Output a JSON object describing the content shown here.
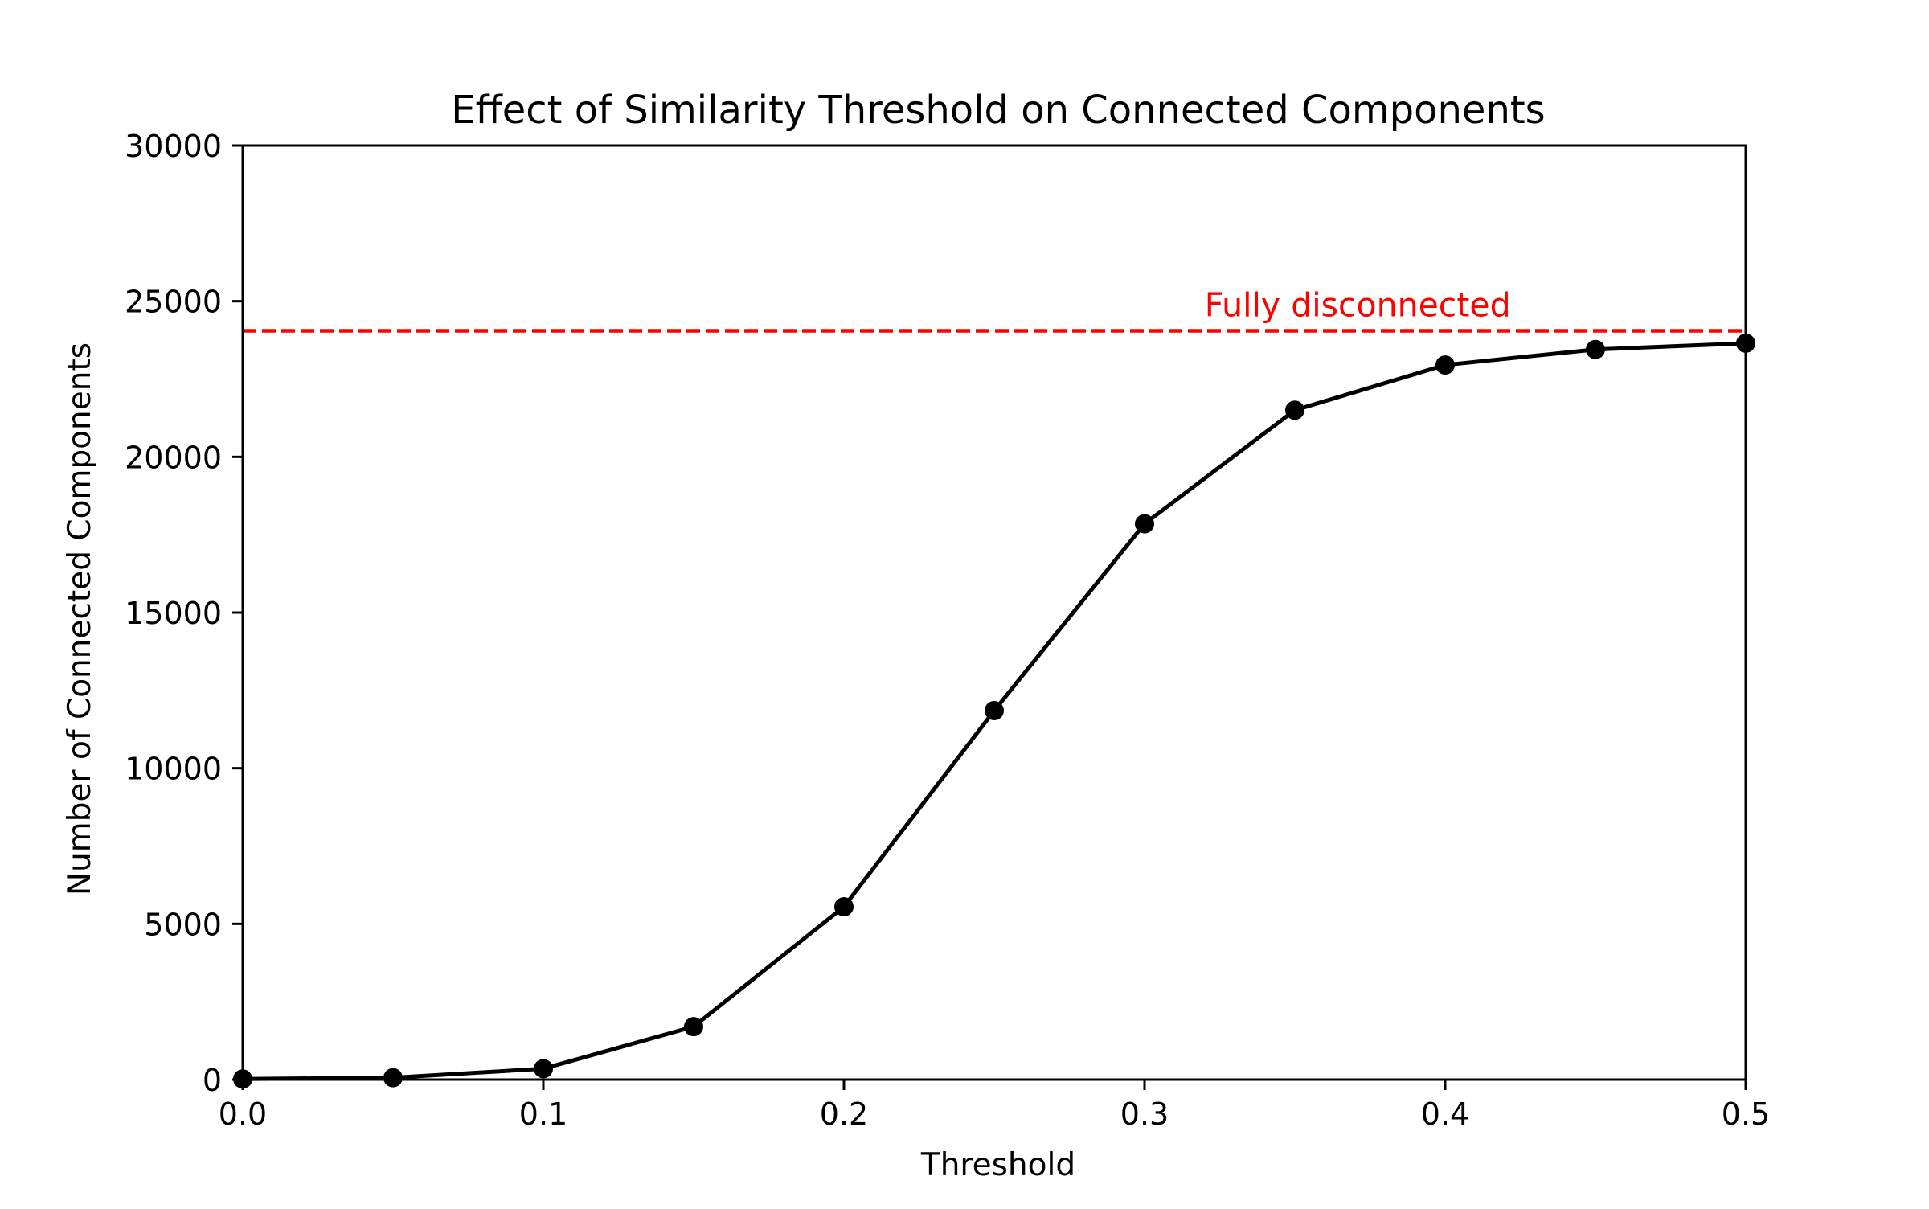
{
  "chart_data": {
    "type": "line",
    "title": "Effect of Similarity Threshold on Connected Components",
    "xlabel": "Threshold",
    "ylabel": "Number of Connected Components",
    "xlim": [
      0.0,
      0.5
    ],
    "ylim": [
      0,
      30000
    ],
    "x_ticks": [
      0.0,
      0.1,
      0.2,
      0.3,
      0.4,
      0.5
    ],
    "x_tick_labels": [
      "0.0",
      "0.1",
      "0.2",
      "0.3",
      "0.4",
      "0.5"
    ],
    "y_ticks": [
      0,
      5000,
      10000,
      15000,
      20000,
      25000,
      30000
    ],
    "y_tick_labels": [
      "0",
      "5000",
      "10000",
      "15000",
      "20000",
      "25000",
      "30000"
    ],
    "grid": false,
    "legend": "none",
    "series": [
      {
        "color": "#000000",
        "marker": "circle",
        "x": [
          0.0,
          0.05,
          0.1,
          0.15,
          0.2,
          0.25,
          0.3,
          0.35,
          0.4,
          0.45,
          0.5
        ],
        "values": [
          20,
          60,
          350,
          1700,
          5550,
          11850,
          17850,
          21500,
          22950,
          23450,
          23650
        ]
      }
    ],
    "reference_line": {
      "orientation": "horizontal",
      "y": 24050,
      "color": "#ff0000",
      "style": "dashed",
      "label": "Fully disconnected",
      "label_x": 0.32
    }
  }
}
